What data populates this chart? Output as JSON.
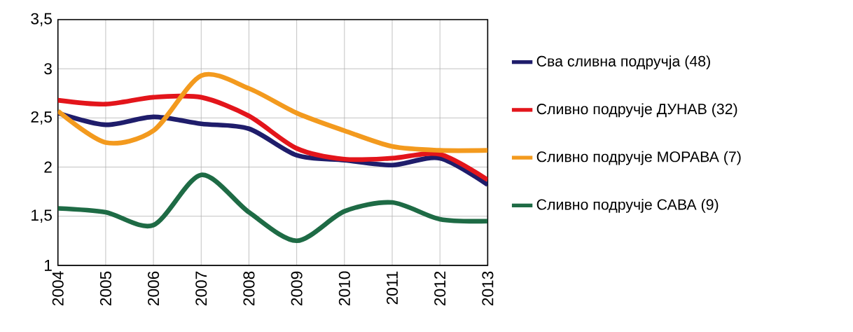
{
  "chart_data": {
    "type": "line",
    "x": [
      2004,
      2005,
      2006,
      2007,
      2008,
      2009,
      2010,
      2011,
      2012,
      2013
    ],
    "series": [
      {
        "name": "Сва сливна подручја (48)",
        "color": "#1f1d6b",
        "values": [
          2.55,
          2.43,
          2.51,
          2.44,
          2.39,
          2.12,
          2.07,
          2.02,
          2.09,
          1.82
        ]
      },
      {
        "name": "Сливно подручје ДУНАВ (32)",
        "color": "#e3151b",
        "values": [
          2.68,
          2.64,
          2.71,
          2.71,
          2.52,
          2.19,
          2.08,
          2.09,
          2.13,
          1.87
        ]
      },
      {
        "name": "Сливно подручје МОРАВА (7)",
        "color": "#f39a1e",
        "values": [
          2.57,
          2.25,
          2.37,
          2.93,
          2.8,
          2.55,
          2.37,
          2.21,
          2.17,
          2.17
        ]
      },
      {
        "name": "Сливно подручје САВА (9)",
        "color": "#1e6b45",
        "values": [
          1.58,
          1.54,
          1.41,
          1.92,
          1.54,
          1.25,
          1.55,
          1.64,
          1.47,
          1.45
        ]
      }
    ],
    "xlim": [
      2004,
      2013
    ],
    "xticks": [
      2004,
      2005,
      2006,
      2007,
      2008,
      2009,
      2010,
      2011,
      2012,
      2013
    ],
    "ylim": [
      1,
      3.5
    ],
    "yticks": [
      1,
      {
        "value": 1.5,
        "label": "1,5"
      },
      2,
      {
        "value": 2.5,
        "label": "2,5"
      },
      3,
      {
        "value": 3.5,
        "label": "3,5"
      }
    ],
    "grid": true,
    "legend": "right"
  }
}
